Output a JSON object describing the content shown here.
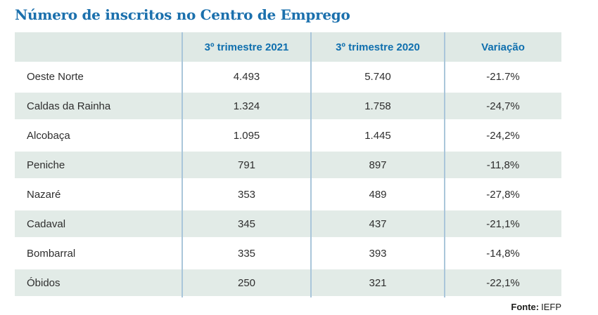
{
  "title": "Número de inscritos no Centro de Emprego",
  "source": {
    "label": "Fonte:",
    "value": "IEFP"
  },
  "colors": {
    "title_blue": "#1b70ad",
    "header_text_blue": "#0f6fae",
    "header_bg": "#dfe9e5",
    "shaded_row_bg": "#e2ebe7",
    "divider_blue": "#aac6da",
    "body_text": "#2e2e2e"
  },
  "table": {
    "headers": [
      "",
      "3º trimestre 2021",
      "3º trimestre 2020",
      "Variação"
    ],
    "rows": [
      {
        "name": "Oeste Norte",
        "t2021": "4.493",
        "t2020": "5.740",
        "variacao": "-21.7%"
      },
      {
        "name": "Caldas da Rainha",
        "t2021": "1.324",
        "t2020": "1.758",
        "variacao": "-24,7%"
      },
      {
        "name": "Alcobaça",
        "t2021": "1.095",
        "t2020": "1.445",
        "variacao": "-24,2%"
      },
      {
        "name": "Peniche",
        "t2021": "791",
        "t2020": "897",
        "variacao": "-11,8%"
      },
      {
        "name": "Nazaré",
        "t2021": "353",
        "t2020": "489",
        "variacao": "-27,8%"
      },
      {
        "name": "Cadaval",
        "t2021": "345",
        "t2020": "437",
        "variacao": "-21,1%"
      },
      {
        "name": "Bombarral",
        "t2021": "335",
        "t2020": "393",
        "variacao": "-14,8%"
      },
      {
        "name": "Óbidos",
        "t2021": "250",
        "t2020": "321",
        "variacao": "-22,1%"
      }
    ]
  },
  "chart_data": {
    "type": "table",
    "title": "Número de inscritos no Centro de Emprego",
    "columns": [
      "",
      "3º trimestre 2021",
      "3º trimestre 2020",
      "Variação"
    ],
    "categories": [
      "Oeste Norte",
      "Caldas da Rainha",
      "Alcobaça",
      "Peniche",
      "Nazaré",
      "Cadaval",
      "Bombarral",
      "Óbidos"
    ],
    "series": [
      {
        "name": "3º trimestre 2021",
        "values": [
          4493,
          1324,
          1095,
          791,
          353,
          345,
          335,
          250
        ]
      },
      {
        "name": "3º trimestre 2020",
        "values": [
          5740,
          1758,
          1445,
          897,
          489,
          437,
          393,
          321
        ]
      },
      {
        "name": "Variação (%)",
        "values": [
          -21.7,
          -24.7,
          -24.2,
          -11.8,
          -27.8,
          -21.1,
          -14.8,
          -22.1
        ]
      }
    ],
    "source": "Fonte: IEFP",
    "layout": {
      "striped_rows": true,
      "grid": "vertical-dividers-only",
      "legend_position": "none"
    }
  }
}
